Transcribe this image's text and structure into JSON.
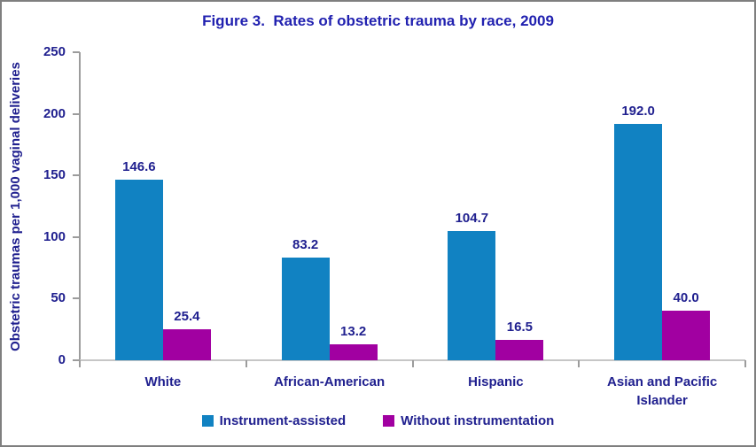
{
  "chart_data": {
    "type": "bar",
    "title": "Figure 3.  Rates of obstetric trauma by race, 2009",
    "ylabel": "Obstetric traumas per 1,000 vaginal deliveries",
    "xlabel": "",
    "categories": [
      "White",
      "African-American",
      "Hispanic",
      "Asian and Pacific Islander"
    ],
    "series": [
      {
        "name": "Instrument-assisted",
        "color": "#1182C2",
        "values": [
          146.6,
          83.2,
          104.7,
          192.0
        ]
      },
      {
        "name": "Without instrumentation",
        "color": "#A100A1",
        "values": [
          25.4,
          13.2,
          16.5,
          40.0
        ]
      }
    ],
    "ylim": [
      0,
      250
    ],
    "yticks": [
      0,
      50,
      100,
      150,
      200,
      250
    ],
    "grid": false,
    "legend_position": "bottom",
    "value_label_decimals": 1
  },
  "colors": {
    "title_text": "#2121B0",
    "text": "#20208F",
    "axis_line": "#9C9C9C",
    "baseline": "#C6C6C6",
    "frame_border": "#7F7F7F",
    "background": "#FFFFFF"
  }
}
